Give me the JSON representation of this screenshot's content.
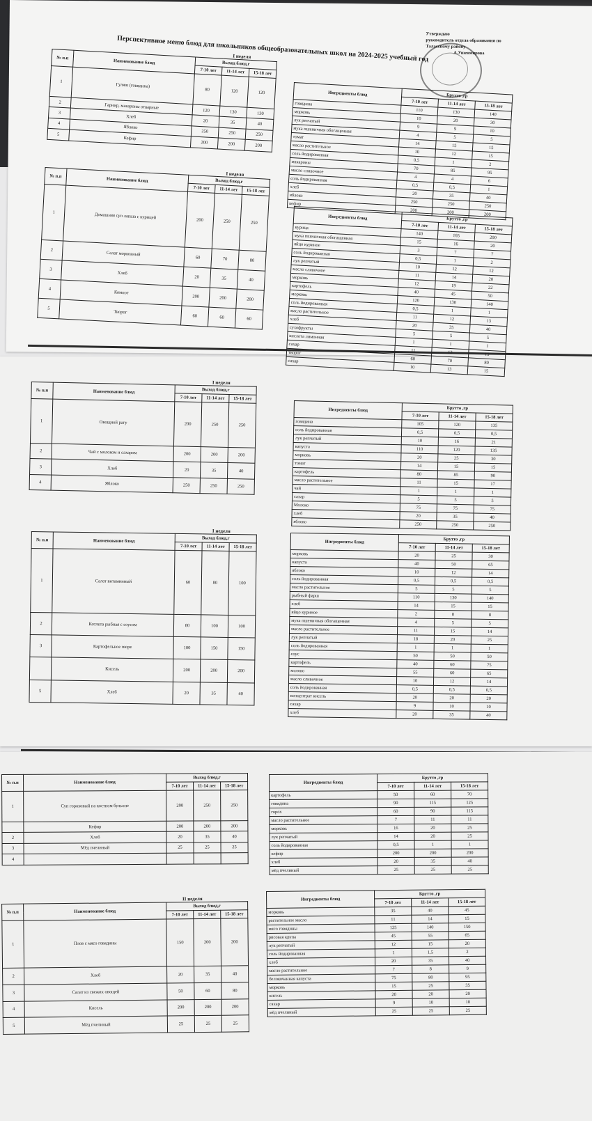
{
  "approval": {
    "line1": "Утверждаю",
    "line2": "руководитель отдела образования по",
    "line3": "Таласскому району",
    "line4": "А.Ушенмирова"
  },
  "title": "Перспективное меню блюд для школьников общеобразовательных школ на 2024-2025 учебный год",
  "headers": {
    "num": "№ п.п",
    "dish": "Наименование блюд",
    "yield": "Выход блюд,г",
    "ingredients": "Ингредиенты блюд",
    "brutto": "Брутто ,гр",
    "ages": [
      "7-10 лет",
      "11-14 лет",
      "15-18 лет"
    ]
  },
  "tables": [
    {
      "week": "I неделя",
      "dishes": [
        {
          "num": "1",
          "name": "Гуляш (говядина)",
          "v": [
            "80",
            "120",
            "120"
          ]
        },
        {
          "num": "2",
          "name": "Гарнир, макароны отварные",
          "v": [
            "120",
            "130",
            "130"
          ]
        },
        {
          "num": "3",
          "name": "Хлеб",
          "v": [
            "20",
            "35",
            "40"
          ]
        },
        {
          "num": "4",
          "name": "Яблоко",
          "v": [
            "250",
            "250",
            "250"
          ]
        },
        {
          "num": "5",
          "name": "Кефир",
          "v": [
            "200",
            "200",
            "200"
          ]
        }
      ],
      "ingredients": [
        {
          "name": "говядина",
          "v": [
            "110",
            "130",
            "140"
          ]
        },
        {
          "name": "морковь",
          "v": [
            "10",
            "20",
            "30"
          ]
        },
        {
          "name": "лук репчатый",
          "v": [
            "9",
            "9",
            "10"
          ]
        },
        {
          "name": "мука пшеничная обогащенная",
          "v": [
            "4",
            "5",
            "5"
          ]
        },
        {
          "name": "томат",
          "v": [
            "14",
            "15",
            "15"
          ]
        },
        {
          "name": "масло растительное",
          "v": [
            "10",
            "12",
            "15"
          ]
        },
        {
          "name": "соль йодированная",
          "v": [
            "0,5",
            "1",
            "2"
          ]
        },
        {
          "name": "макароны",
          "v": [
            "70",
            "85",
            "95"
          ]
        },
        {
          "name": "масло сливочное",
          "v": [
            "4",
            "4",
            "6"
          ]
        },
        {
          "name": "соль йодированная",
          "v": [
            "0,5",
            "0,5",
            "1"
          ]
        },
        {
          "name": "хлеб",
          "v": [
            "20",
            "35",
            "40"
          ]
        },
        {
          "name": "яблоко",
          "v": [
            "250",
            "250",
            "250"
          ]
        },
        {
          "name": "кефир",
          "v": [
            "200",
            "200",
            "200"
          ]
        }
      ]
    },
    {
      "week": "I неделя",
      "dishes": [
        {
          "num": "1",
          "name": "Домашняя суп лапша с курицей",
          "v": [
            "200",
            "250",
            "250"
          ]
        },
        {
          "num": "2",
          "name": "Салат морковный",
          "v": [
            "60",
            "70",
            "80"
          ]
        },
        {
          "num": "3",
          "name": "Хлеб",
          "v": [
            "20",
            "35",
            "40"
          ]
        },
        {
          "num": "4",
          "name": "Компот",
          "v": [
            "200",
            "200",
            "200"
          ]
        },
        {
          "num": "5",
          "name": "Творог",
          "v": [
            "60",
            "60",
            "60"
          ]
        }
      ],
      "ingredients": [
        {
          "name": "курица",
          "v": [
            "140",
            "165",
            "200"
          ]
        },
        {
          "name": "мука пшеничная обогащенная",
          "v": [
            "15",
            "16",
            "20"
          ]
        },
        {
          "name": "яйцо куриное",
          "v": [
            "3",
            "7",
            "7"
          ]
        },
        {
          "name": "соль йодированная",
          "v": [
            "0,5",
            "1",
            "2"
          ]
        },
        {
          "name": "лук репчатый",
          "v": [
            "10",
            "12",
            "12"
          ]
        },
        {
          "name": "масло сливочное",
          "v": [
            "11",
            "14",
            "20"
          ]
        },
        {
          "name": "морковь",
          "v": [
            "12",
            "19",
            "22"
          ]
        },
        {
          "name": "картофель",
          "v": [
            "40",
            "45",
            "50"
          ]
        },
        {
          "name": "морковь",
          "v": [
            "120",
            "130",
            "140"
          ]
        },
        {
          "name": "соль йодированная",
          "v": [
            "0,5",
            "1",
            "1"
          ]
        },
        {
          "name": "масло растительное",
          "v": [
            "11",
            "12",
            "13"
          ]
        },
        {
          "name": "хлеб",
          "v": [
            "20",
            "35",
            "40"
          ]
        },
        {
          "name": "сухофрукты",
          "v": [
            "5",
            "5",
            "5"
          ]
        },
        {
          "name": "кислота лимонная",
          "v": [
            "1",
            "1",
            "1"
          ]
        },
        {
          "name": "сахар",
          "v": [
            "11",
            "12",
            "15"
          ]
        },
        {
          "name": "творог",
          "v": [
            "60",
            "70",
            "80"
          ]
        },
        {
          "name": "сахар",
          "v": [
            "10",
            "13",
            "15"
          ]
        }
      ]
    },
    {
      "week": "I неделя",
      "dishes": [
        {
          "num": "1",
          "name": "Овощной рагу",
          "v": [
            "200",
            "250",
            "250"
          ]
        },
        {
          "num": "2",
          "name": "Чай с молоком и сахаром",
          "v": [
            "200",
            "200",
            "200"
          ]
        },
        {
          "num": "3",
          "name": "Хлеб",
          "v": [
            "20",
            "35",
            "40"
          ]
        },
        {
          "num": "4",
          "name": "Яблоко",
          "v": [
            "250",
            "250",
            "250"
          ]
        }
      ],
      "ingredients": [
        {
          "name": "говядина",
          "v": [
            "105",
            "120",
            "135"
          ]
        },
        {
          "name": "соль йодированная",
          "v": [
            "0,5",
            "0,5",
            "0,5"
          ]
        },
        {
          "name": "лук репчатый",
          "v": [
            "10",
            "16",
            "21"
          ]
        },
        {
          "name": "капуста",
          "v": [
            "110",
            "120",
            "135"
          ]
        },
        {
          "name": "морковь",
          "v": [
            "20",
            "25",
            "30"
          ]
        },
        {
          "name": "томат",
          "v": [
            "14",
            "15",
            "15"
          ]
        },
        {
          "name": "картофель",
          "v": [
            "80",
            "85",
            "90"
          ]
        },
        {
          "name": "масло растительное",
          "v": [
            "11",
            "15",
            "17"
          ]
        },
        {
          "name": "чай",
          "v": [
            "1",
            "1",
            "1"
          ]
        },
        {
          "name": "сахар",
          "v": [
            "5",
            "5",
            "5"
          ]
        },
        {
          "name": "Молоко",
          "v": [
            "75",
            "75",
            "75"
          ]
        },
        {
          "name": "хлеб",
          "v": [
            "20",
            "35",
            "40"
          ]
        },
        {
          "name": "яблоко",
          "v": [
            "250",
            "250",
            "250"
          ]
        }
      ]
    },
    {
      "week": "I неделя",
      "dishes": [
        {
          "num": "1",
          "name": "Салат витаминный",
          "v": [
            "60",
            "80",
            "100"
          ]
        },
        {
          "num": "2",
          "name": "Котлета рыбная с соусом",
          "v": [
            "80",
            "100",
            "100"
          ]
        },
        {
          "num": "3",
          "name": "Картофельное пюре",
          "v": [
            "100",
            "150",
            "150"
          ]
        },
        {
          "num": "",
          "name": "Кисель",
          "v": [
            "200",
            "200",
            "200"
          ]
        },
        {
          "num": "5",
          "name": "Хлеб",
          "v": [
            "20",
            "35",
            "40"
          ]
        }
      ],
      "ingredients": [
        {
          "name": "морковь",
          "v": [
            "20",
            "25",
            "30"
          ]
        },
        {
          "name": "капуста",
          "v": [
            "40",
            "50",
            "65"
          ]
        },
        {
          "name": "яблоко",
          "v": [
            "10",
            "12",
            "14"
          ]
        },
        {
          "name": "соль йодированная",
          "v": [
            "0,5",
            "0,5",
            "0,5"
          ]
        },
        {
          "name": "масло растительное",
          "v": [
            "5",
            "5",
            "5"
          ]
        },
        {
          "name": "рыбный фарш",
          "v": [
            "110",
            "130",
            "140"
          ]
        },
        {
          "name": "хлеб",
          "v": [
            "14",
            "15",
            "15"
          ]
        },
        {
          "name": "яйцо куриное",
          "v": [
            "2",
            "8",
            "8"
          ]
        },
        {
          "name": "мука пшеничная обогащенная",
          "v": [
            "4",
            "5",
            "5"
          ]
        },
        {
          "name": "масло растительное",
          "v": [
            "11",
            "15",
            "14"
          ]
        },
        {
          "name": "лук репчатый",
          "v": [
            "18",
            "20",
            "25"
          ]
        },
        {
          "name": "соль йодированная",
          "v": [
            "1",
            "1",
            "1"
          ]
        },
        {
          "name": "соус",
          "v": [
            "50",
            "50",
            "50"
          ]
        },
        {
          "name": "картофель",
          "v": [
            "40",
            "60",
            "75"
          ]
        },
        {
          "name": "молоко",
          "v": [
            "55",
            "60",
            "65"
          ]
        },
        {
          "name": "масло сливочное",
          "v": [
            "10",
            "12",
            "14"
          ]
        },
        {
          "name": "соль йодированная",
          "v": [
            "0,5",
            "0,5",
            "0,5"
          ]
        },
        {
          "name": "концентрат кисель",
          "v": [
            "20",
            "20",
            "20"
          ]
        },
        {
          "name": "сахар",
          "v": [
            "9",
            "10",
            "10"
          ]
        },
        {
          "name": "хлеб",
          "v": [
            "20",
            "35",
            "40"
          ]
        }
      ]
    },
    {
      "week": "",
      "dishes": [
        {
          "num": "1",
          "name": "Суп гороховый на костном бульоне",
          "v": [
            "200",
            "250",
            "250"
          ]
        },
        {
          "num": "",
          "name": "Кефир",
          "v": [
            "200",
            "200",
            "200"
          ]
        },
        {
          "num": "2",
          "name": "Хлеб",
          "v": [
            "20",
            "35",
            "40"
          ]
        },
        {
          "num": "3",
          "name": "Мёд пчелиный",
          "v": [
            "25",
            "25",
            "25"
          ]
        },
        {
          "num": "4",
          "name": "",
          "v": [
            "",
            "",
            ""
          ]
        }
      ],
      "ingredients": [
        {
          "name": "картофель",
          "v": [
            "50",
            "60",
            "70"
          ]
        },
        {
          "name": "говядина",
          "v": [
            "90",
            "115",
            "125"
          ]
        },
        {
          "name": "горох",
          "v": [
            "60",
            "90",
            "115"
          ]
        },
        {
          "name": "масло растительное",
          "v": [
            "7",
            "11",
            "11"
          ]
        },
        {
          "name": "морковь",
          "v": [
            "16",
            "20",
            "25"
          ]
        },
        {
          "name": "лук репчатый",
          "v": [
            "14",
            "20",
            "25"
          ]
        },
        {
          "name": "соль йодированная",
          "v": [
            "0,5",
            "1",
            "1"
          ]
        },
        {
          "name": "кефир",
          "v": [
            "200",
            "200",
            "200"
          ]
        },
        {
          "name": "хлеб",
          "v": [
            "20",
            "35",
            "40"
          ]
        },
        {
          "name": "мёд пчелиный",
          "v": [
            "25",
            "25",
            "25"
          ]
        }
      ]
    },
    {
      "week": "II неделя",
      "dishes": [
        {
          "num": "1",
          "name": "Плов с мясо говядины",
          "v": [
            "150",
            "200",
            "200"
          ]
        },
        {
          "num": "2",
          "name": "Хлеб",
          "v": [
            "20",
            "35",
            "40"
          ]
        },
        {
          "num": "3",
          "name": "Салат из свежих овощей",
          "v": [
            "50",
            "60",
            "80"
          ]
        },
        {
          "num": "4",
          "name": "Кисель",
          "v": [
            "200",
            "200",
            "200"
          ]
        },
        {
          "num": "5",
          "name": "Мёд пчелиный",
          "v": [
            "25",
            "25",
            "25"
          ]
        }
      ],
      "ingredients": [
        {
          "name": "морковь",
          "v": [
            "35",
            "40",
            "45"
          ]
        },
        {
          "name": "растительное масло",
          "v": [
            "11",
            "14",
            "15"
          ]
        },
        {
          "name": "мясо говядины",
          "v": [
            "125",
            "140",
            "150"
          ]
        },
        {
          "name": "рисовая крупа",
          "v": [
            "45",
            "55",
            "65"
          ]
        },
        {
          "name": "лук репчатый",
          "v": [
            "12",
            "15",
            "20"
          ]
        },
        {
          "name": "соль йодированная",
          "v": [
            "1",
            "1,5",
            "2"
          ]
        },
        {
          "name": "хлеб",
          "v": [
            "20",
            "35",
            "40"
          ]
        },
        {
          "name": "масло растительное",
          "v": [
            "7",
            "8",
            "9"
          ]
        },
        {
          "name": "белокочанная капуста",
          "v": [
            "75",
            "80",
            "95"
          ]
        },
        {
          "name": "морковь",
          "v": [
            "15",
            "25",
            "35"
          ]
        },
        {
          "name": "кисель",
          "v": [
            "20",
            "20",
            "20"
          ]
        },
        {
          "name": "сахар",
          "v": [
            "9",
            "10",
            "10"
          ]
        },
        {
          "name": "мёд пчелиный",
          "v": [
            "25",
            "25",
            "25"
          ]
        }
      ]
    }
  ]
}
